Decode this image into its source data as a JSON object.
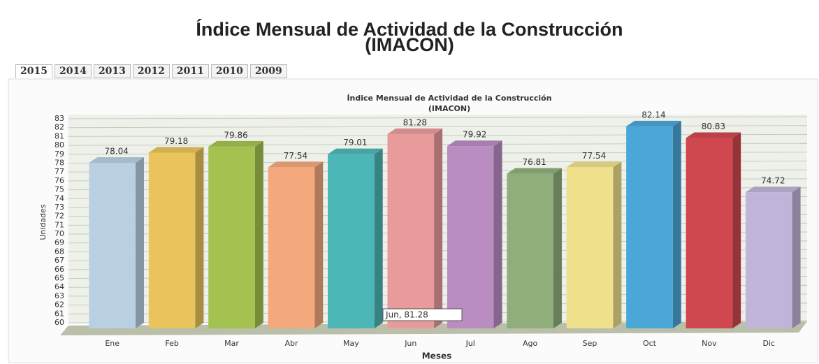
{
  "page": {
    "title": [
      "Índice Mensual de Actividad de la Construcción",
      "(IMACON)"
    ],
    "tabs": [
      "2015",
      "2014",
      "2013",
      "2012",
      "2011",
      "2010",
      "2009"
    ]
  },
  "chart_data": {
    "type": "bar",
    "title": [
      "Índice Mensual de Actividad de la Construcción",
      "(IMACON)"
    ],
    "x_label": "Meses",
    "y_label": "Unidades",
    "categories": [
      "Ene",
      "Feb",
      "Mar",
      "Abr",
      "May",
      "Jun",
      "Jul",
      "Ago",
      "Sep",
      "Oct",
      "Nov",
      "Dic"
    ],
    "values": [
      78.04,
      79.18,
      79.86,
      77.54,
      79.01,
      81.28,
      79.92,
      76.81,
      77.54,
      82.14,
      80.83,
      74.72
    ],
    "colors": [
      "#b9cfe2",
      "#e9c35c",
      "#a4c24f",
      "#f3a97c",
      "#4db6b6",
      "#e99b9b",
      "#ba8dc2",
      "#90ae7b",
      "#efe08c",
      "#4ba7d7",
      "#d0474f",
      "#c1b4d9"
    ],
    "ylim": [
      60,
      83
    ],
    "yticks": [
      60,
      61,
      62,
      63,
      64,
      65,
      66,
      67,
      68,
      69,
      70,
      71,
      72,
      73,
      74,
      75,
      76,
      77,
      78,
      79,
      80,
      81,
      82,
      83
    ],
    "grid": true,
    "tooltip": "Jun, 81.28"
  }
}
